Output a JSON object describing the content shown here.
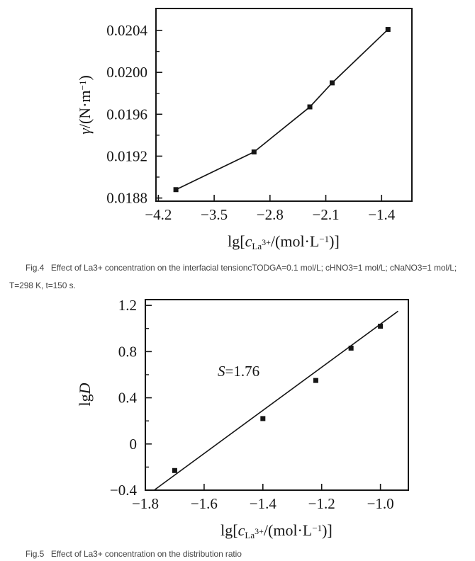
{
  "page": {
    "background": "#ffffff",
    "ink": "#151515",
    "caption_color": "#454545"
  },
  "fig4": {
    "y_title": {
      "var": "γ",
      "mid": "/(N·m",
      "sup": "−1",
      "end": ")"
    },
    "x_title": {
      "prefix": "lg[",
      "var": "c",
      "sub": "La",
      "sub_sup": "3+",
      "mid": "/(mol·L",
      "sup": "−1",
      "end": ")]"
    },
    "caption_line1": "Fig.4   Effect of La3+ concentration on the interfacial tensioncTODGA=0.1 mol/L; cHNO3=1 mol/L; cNaNO3=1 mol/L;",
    "caption_line2": "T=298 K, t=150 s."
  },
  "fig5": {
    "y_title": {
      "prefix": "lg",
      "var": "D"
    },
    "x_title": {
      "prefix": "lg[",
      "var": "c",
      "sub": "La",
      "sub_sup": "3+",
      "mid": "/(mol·L",
      "sup": "−1",
      "end": ")]"
    },
    "annotation": {
      "var": "S",
      "rest": "=1.76"
    },
    "caption": "Fig.5   Effect of La3+ concentration on the distribution ratio"
  },
  "chart_data": [
    {
      "id": "fig4",
      "type": "line",
      "title": "",
      "xlabel": "lg[c_La3+/(mol·L−1)]",
      "ylabel": "γ/(N·m−1)",
      "x": [
        -3.98,
        -3.0,
        -2.3,
        -2.02,
        -1.32
      ],
      "y": [
        0.01888,
        0.01924,
        0.01967,
        0.0199,
        0.02041
      ],
      "connect": true,
      "marker": "square",
      "xlim": [
        -4.23,
        -1.02
      ],
      "ylim": [
        0.01877,
        0.02061
      ],
      "xticks": [
        -4.2,
        -3.5,
        -2.8,
        -2.1,
        -1.4
      ],
      "xtick_labels": [
        "−4.2",
        "−3.5",
        "−2.8",
        "−2.1",
        "−1.4"
      ],
      "yticks": [
        0.0188,
        0.0192,
        0.0196,
        0.02,
        0.0204
      ],
      "ytick_labels": [
        "0.0188",
        "0.0192",
        "0.0196",
        "0.0200",
        "0.0204"
      ],
      "yticks_minor": [
        0.019,
        0.0194,
        0.0198,
        0.0202
      ],
      "xticks_minor": [],
      "grid": false,
      "legend": null
    },
    {
      "id": "fig5",
      "type": "scatter",
      "title": "",
      "xlabel": "lg[c_La3+/(mol·L−1)]",
      "ylabel": "lgD",
      "x": [
        -1.7,
        -1.4,
        -1.22,
        -1.1,
        -1.0
      ],
      "y": [
        -0.23,
        0.22,
        0.55,
        0.83,
        1.02
      ],
      "connect": false,
      "marker": "square",
      "fit_line": {
        "x": [
          -1.77,
          -0.94
        ],
        "y": [
          -0.4,
          1.15
        ],
        "slope_label": "S=1.76"
      },
      "annotation": {
        "text": "S=1.76",
        "x": -1.55,
        "y": 0.62
      },
      "xlim": [
        -1.8,
        -0.905
      ],
      "ylim": [
        -0.4,
        1.25
      ],
      "xticks": [
        -1.8,
        -1.6,
        -1.4,
        -1.2,
        -1.0
      ],
      "xtick_labels": [
        "−1.8",
        "−1.6",
        "−1.4",
        "−1.2",
        "−1.0"
      ],
      "yticks": [
        -0.4,
        0,
        0.4,
        0.8,
        1.2
      ],
      "ytick_labels": [
        "−0.4",
        "0",
        "0.4",
        "0.8",
        "1.2"
      ],
      "yticks_minor": [
        -0.2,
        0.2,
        0.6,
        1.0
      ],
      "xticks_minor": [],
      "grid": false,
      "legend": null
    }
  ]
}
